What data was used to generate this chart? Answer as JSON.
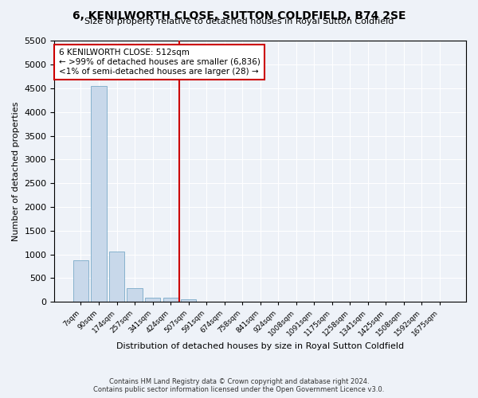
{
  "title": "6, KENILWORTH CLOSE, SUTTON COLDFIELD, B74 2SE",
  "subtitle": "Size of property relative to detached houses in Royal Sutton Coldfield",
  "xlabel": "Distribution of detached houses by size in Royal Sutton Coldfield",
  "ylabel": "Number of detached properties",
  "footer_line1": "Contains HM Land Registry data © Crown copyright and database right 2024.",
  "footer_line2": "Contains public sector information licensed under the Open Government Licence v3.0.",
  "annotation_line1": "6 KENILWORTH CLOSE: 512sqm",
  "annotation_line2": "← >99% of detached houses are smaller (6,836)",
  "annotation_line3": "<1% of semi-detached houses are larger (28) →",
  "bar_color": "#c8d8ea",
  "bar_edge_color": "#7aaac8",
  "vline_color": "#cc0000",
  "background_color": "#eef2f8",
  "grid_color": "#ffffff",
  "categories": [
    "7sqm",
    "90sqm",
    "174sqm",
    "257sqm",
    "341sqm",
    "424sqm",
    "507sqm",
    "591sqm",
    "674sqm",
    "758sqm",
    "841sqm",
    "924sqm",
    "1008sqm",
    "1091sqm",
    "1175sqm",
    "1258sqm",
    "1341sqm",
    "1425sqm",
    "1508sqm",
    "1592sqm",
    "1675sqm"
  ],
  "values": [
    870,
    4560,
    1060,
    290,
    90,
    80,
    50,
    0,
    0,
    0,
    0,
    0,
    0,
    0,
    0,
    0,
    0,
    0,
    0,
    0,
    0
  ],
  "ylim": [
    0,
    5500
  ],
  "yticks": [
    0,
    500,
    1000,
    1500,
    2000,
    2500,
    3000,
    3500,
    4000,
    4500,
    5000,
    5500
  ],
  "vline_index": 6,
  "figsize": [
    6.0,
    5.0
  ],
  "dpi": 100
}
